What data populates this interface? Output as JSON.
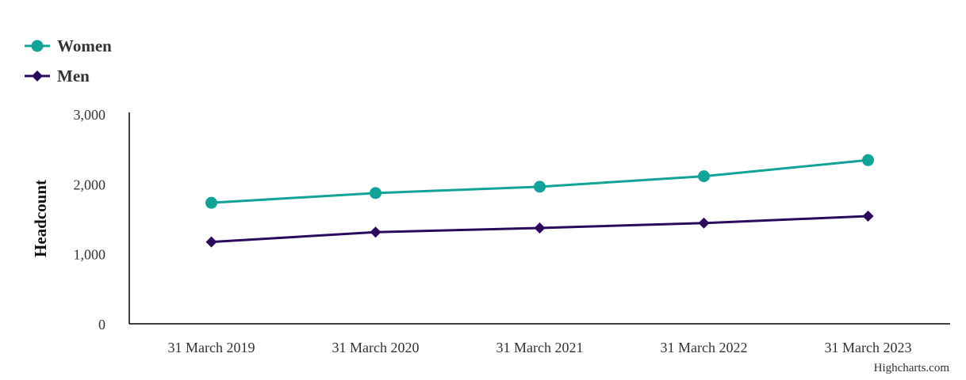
{
  "chart_data": {
    "type": "line",
    "categories": [
      "31 March 2019",
      "31 March 2020",
      "31 March 2021",
      "31 March 2022",
      "31 March 2023"
    ],
    "series": [
      {
        "name": "Women",
        "values": [
          1730,
          1870,
          1960,
          2110,
          2340
        ],
        "color": "#12a398",
        "marker": "circle"
      },
      {
        "name": "Men",
        "values": [
          1170,
          1310,
          1370,
          1440,
          1540
        ],
        "color": "#2b0a5e",
        "marker": "diamond"
      }
    ],
    "ylabel": "Headcount",
    "ylim": [
      0,
      3000
    ],
    "yticks": [
      0,
      1000,
      2000,
      3000
    ],
    "ytick_labels": [
      "0",
      "1,000",
      "2,000",
      "3,000"
    ],
    "grid": false,
    "legend": "top-left"
  },
  "credits": "Highcharts.com"
}
